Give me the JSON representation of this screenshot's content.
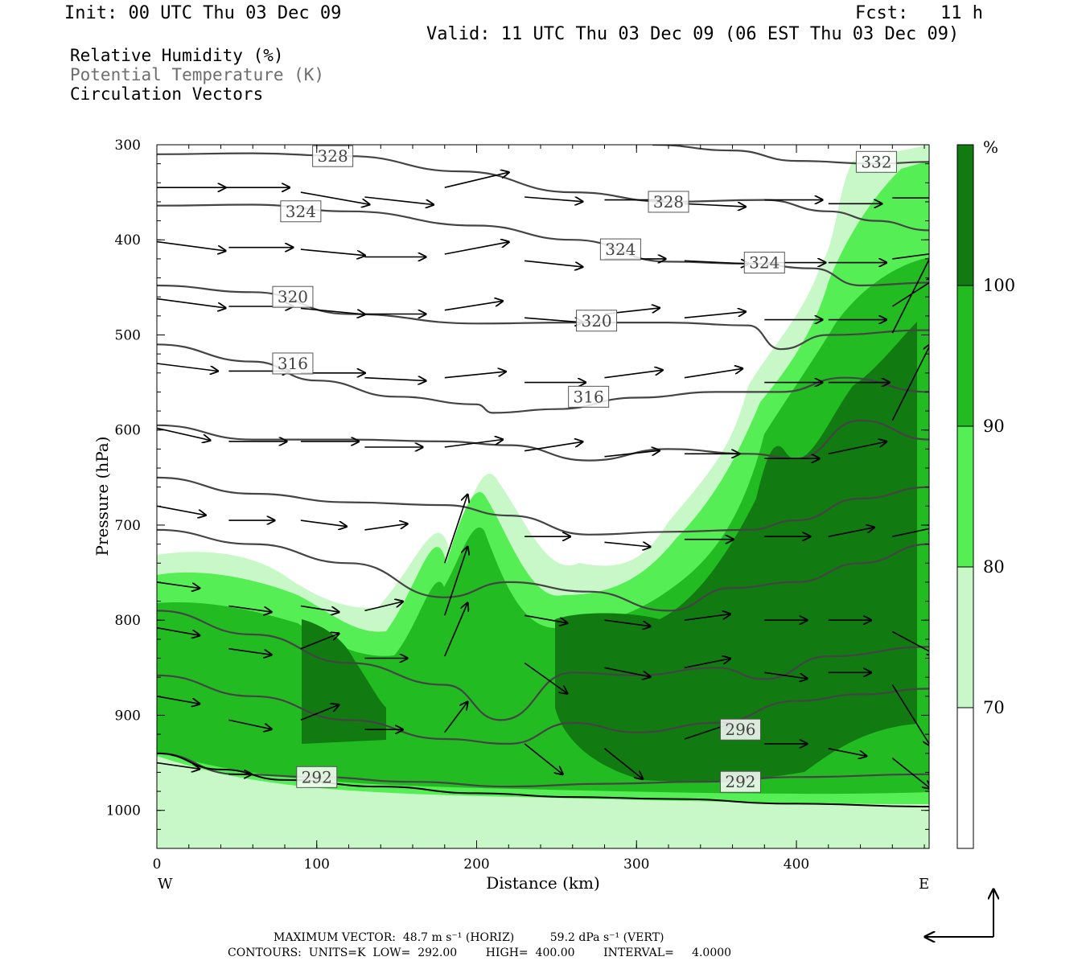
{
  "header": {
    "init": "Init: 00 UTC Thu 03 Dec 09",
    "fcst": "Fcst:   11 h",
    "valid": "Valid: 11 UTC Thu 03 Dec 09 (06 EST Thu 03 Dec 09)"
  },
  "fields": {
    "rh": "Relative Humidity (%)",
    "theta": "Potential Temperature (K)",
    "vectors": "Circulation Vectors"
  },
  "colors": {
    "rh_70_80": "#c8f7c8",
    "rh_80_90": "#55ee55",
    "rh_90_100": "#22bb22",
    "rh_100": "#117a11",
    "theta_line": "#444444",
    "vector": "#000000"
  },
  "chart_data": {
    "type": "cross-section",
    "xlabel": "Distance (km)",
    "ylabel": "Pressure (hPa)",
    "xlim": [
      0,
      483
    ],
    "ylim": [
      1040,
      300
    ],
    "x_ticks": [
      "0",
      "100",
      "200",
      "300",
      "400"
    ],
    "y_ticks": [
      "300",
      "400",
      "500",
      "600",
      "700",
      "800",
      "900",
      "1000"
    ],
    "west_label": "W",
    "east_label": "E",
    "colorbar": {
      "unit": "%",
      "levels": [
        "70",
        "80",
        "90",
        "100"
      ]
    },
    "theta_contours": [
      {
        "level": 332,
        "label": "332",
        "points": [
          [
            310,
            300
          ],
          [
            360,
            306
          ],
          [
            400,
            317
          ],
          [
            450,
            320
          ],
          [
            483,
            318
          ]
        ]
      },
      {
        "level": 328,
        "label": "328",
        "points": [
          [
            0,
            310
          ],
          [
            60,
            309
          ],
          [
            120,
            312
          ],
          [
            190,
            328
          ],
          [
            260,
            350
          ],
          [
            320,
            360
          ],
          [
            380,
            358
          ],
          [
            420,
            370
          ],
          [
            450,
            380
          ],
          [
            483,
            390
          ]
        ]
      },
      {
        "level": 324,
        "label": "324",
        "points": [
          [
            0,
            364
          ],
          [
            60,
            363
          ],
          [
            120,
            370
          ],
          [
            200,
            385
          ],
          [
            260,
            400
          ],
          [
            320,
            423
          ],
          [
            370,
            425
          ],
          [
            410,
            430
          ],
          [
            440,
            448
          ],
          [
            483,
            445
          ]
        ]
      },
      {
        "level": 320,
        "label": "320",
        "points": [
          [
            0,
            448
          ],
          [
            60,
            455
          ],
          [
            120,
            478
          ],
          [
            200,
            488
          ],
          [
            260,
            487
          ],
          [
            320,
            487
          ],
          [
            370,
            490
          ],
          [
            390,
            515
          ],
          [
            420,
            500
          ],
          [
            483,
            495
          ]
        ]
      },
      {
        "level": 316,
        "label": "316",
        "points": [
          [
            0,
            510
          ],
          [
            60,
            528
          ],
          [
            100,
            548
          ],
          [
            150,
            565
          ],
          [
            200,
            573
          ],
          [
            210,
            582
          ],
          [
            250,
            578
          ],
          [
            300,
            566
          ],
          [
            350,
            560
          ],
          [
            390,
            560
          ],
          [
            430,
            545
          ],
          [
            483,
            560
          ]
        ]
      },
      {
        "level": 312,
        "label": "",
        "points": [
          [
            0,
            595
          ],
          [
            60,
            610
          ],
          [
            120,
            610
          ],
          [
            180,
            612
          ],
          [
            220,
            616
          ],
          [
            270,
            632
          ],
          [
            320,
            620
          ],
          [
            370,
            625
          ],
          [
            400,
            630
          ],
          [
            440,
            590
          ],
          [
            483,
            610
          ]
        ]
      },
      {
        "level": 308,
        "label": "",
        "points": [
          [
            0,
            650
          ],
          [
            60,
            667
          ],
          [
            120,
            676
          ],
          [
            180,
            679
          ],
          [
            220,
            690
          ],
          [
            270,
            710
          ],
          [
            320,
            707
          ],
          [
            370,
            705
          ],
          [
            400,
            695
          ],
          [
            440,
            672
          ],
          [
            483,
            660
          ]
        ]
      },
      {
        "level": 304,
        "label": "",
        "points": [
          [
            0,
            705
          ],
          [
            60,
            720
          ],
          [
            120,
            740
          ],
          [
            180,
            776
          ],
          [
            220,
            760
          ],
          [
            270,
            770
          ],
          [
            320,
            790
          ],
          [
            360,
            766
          ],
          [
            400,
            760
          ],
          [
            440,
            740
          ],
          [
            483,
            720
          ]
        ]
      },
      {
        "level": 300,
        "label": "",
        "points": [
          [
            0,
            790
          ],
          [
            60,
            815
          ],
          [
            120,
            845
          ],
          [
            180,
            868
          ],
          [
            215,
            905
          ],
          [
            260,
            855
          ],
          [
            300,
            858
          ],
          [
            350,
            850
          ],
          [
            380,
            862
          ],
          [
            420,
            838
          ],
          [
            483,
            828
          ]
        ]
      },
      {
        "level": 296,
        "label": "296",
        "points": [
          [
            0,
            858
          ],
          [
            60,
            880
          ],
          [
            120,
            905
          ],
          [
            180,
            925
          ],
          [
            220,
            930
          ],
          [
            260,
            908
          ],
          [
            300,
            918
          ],
          [
            350,
            908
          ],
          [
            400,
            885
          ],
          [
            440,
            878
          ],
          [
            483,
            872
          ]
        ]
      },
      {
        "level": 292,
        "label": "292",
        "points": [
          [
            0,
            940
          ],
          [
            50,
            962
          ],
          [
            100,
            965
          ],
          [
            160,
            970
          ],
          [
            220,
            975
          ],
          [
            280,
            972
          ],
          [
            340,
            970
          ],
          [
            400,
            965
          ],
          [
            483,
            962
          ]
        ]
      }
    ],
    "surface_pressure": [
      [
        0,
        940
      ],
      [
        40,
        957
      ],
      [
        80,
        968
      ],
      [
        140,
        975
      ],
      [
        200,
        982
      ],
      [
        260,
        986
      ],
      [
        320,
        988
      ],
      [
        400,
        993
      ],
      [
        483,
        996
      ]
    ],
    "vectors": [
      {
        "x": 0,
        "p": 345,
        "u": 45,
        "w": 0
      },
      {
        "x": 40,
        "p": 345,
        "u": 45,
        "w": 0
      },
      {
        "x": 90,
        "p": 350,
        "u": 45,
        "w": -8
      },
      {
        "x": 130,
        "p": 355,
        "u": 45,
        "w": -5
      },
      {
        "x": 180,
        "p": 345,
        "u": 42,
        "w": 10
      },
      {
        "x": 230,
        "p": 355,
        "u": 38,
        "w": -3
      },
      {
        "x": 280,
        "p": 358,
        "u": 38,
        "w": 0
      },
      {
        "x": 330,
        "p": 362,
        "u": 40,
        "w": -2
      },
      {
        "x": 380,
        "p": 358,
        "u": 38,
        "w": 0
      },
      {
        "x": 420,
        "p": 362,
        "u": 35,
        "w": 0
      },
      {
        "x": 460,
        "p": 356,
        "u": 30,
        "w": 0
      },
      {
        "x": 0,
        "p": 402,
        "u": 45,
        "w": -6
      },
      {
        "x": 45,
        "p": 408,
        "u": 42,
        "w": 0
      },
      {
        "x": 90,
        "p": 410,
        "u": 42,
        "w": -4
      },
      {
        "x": 130,
        "p": 418,
        "u": 40,
        "w": 0
      },
      {
        "x": 180,
        "p": 415,
        "u": 42,
        "w": 8
      },
      {
        "x": 230,
        "p": 422,
        "u": 38,
        "w": -4
      },
      {
        "x": 280,
        "p": 420,
        "u": 40,
        "w": 0
      },
      {
        "x": 330,
        "p": 422,
        "u": 42,
        "w": -2
      },
      {
        "x": 380,
        "p": 424,
        "u": 40,
        "w": 0
      },
      {
        "x": 420,
        "p": 424,
        "u": 38,
        "w": 0
      },
      {
        "x": 460,
        "p": 420,
        "u": 30,
        "w": 4
      },
      {
        "x": 0,
        "p": 462,
        "u": 45,
        "w": -6
      },
      {
        "x": 45,
        "p": 470,
        "u": 42,
        "w": 0
      },
      {
        "x": 90,
        "p": 472,
        "u": 42,
        "w": -4
      },
      {
        "x": 130,
        "p": 478,
        "u": 40,
        "w": 0
      },
      {
        "x": 180,
        "p": 474,
        "u": 38,
        "w": 6
      },
      {
        "x": 230,
        "p": 482,
        "u": 38,
        "w": -3
      },
      {
        "x": 280,
        "p": 478,
        "u": 36,
        "w": 4
      },
      {
        "x": 330,
        "p": 482,
        "u": 40,
        "w": 4
      },
      {
        "x": 380,
        "p": 484,
        "u": 38,
        "w": 0
      },
      {
        "x": 420,
        "p": 484,
        "u": 38,
        "w": 0
      },
      {
        "x": 460,
        "p": 470,
        "u": 28,
        "w": 18
      },
      {
        "x": 0,
        "p": 530,
        "u": 40,
        "w": -5
      },
      {
        "x": 45,
        "p": 538,
        "u": 40,
        "w": 0
      },
      {
        "x": 90,
        "p": 540,
        "u": 42,
        "w": 0
      },
      {
        "x": 130,
        "p": 545,
        "u": 40,
        "w": -2
      },
      {
        "x": 180,
        "p": 545,
        "u": 40,
        "w": 4
      },
      {
        "x": 230,
        "p": 550,
        "u": 40,
        "w": 0
      },
      {
        "x": 280,
        "p": 545,
        "u": 38,
        "w": 5
      },
      {
        "x": 330,
        "p": 545,
        "u": 38,
        "w": 6
      },
      {
        "x": 380,
        "p": 550,
        "u": 38,
        "w": 0
      },
      {
        "x": 420,
        "p": 550,
        "u": 40,
        "w": 0
      },
      {
        "x": 460,
        "p": 498,
        "u": 30,
        "w": 60
      },
      {
        "x": 0,
        "p": 598,
        "u": 35,
        "w": -8
      },
      {
        "x": 45,
        "p": 612,
        "u": 38,
        "w": 0
      },
      {
        "x": 90,
        "p": 612,
        "u": 38,
        "w": 0
      },
      {
        "x": 130,
        "p": 618,
        "u": 38,
        "w": 0
      },
      {
        "x": 180,
        "p": 618,
        "u": 38,
        "w": 5
      },
      {
        "x": 230,
        "p": 622,
        "u": 38,
        "w": 6
      },
      {
        "x": 280,
        "p": 628,
        "u": 36,
        "w": 4
      },
      {
        "x": 330,
        "p": 625,
        "u": 36,
        "w": 0
      },
      {
        "x": 380,
        "p": 630,
        "u": 36,
        "w": 0
      },
      {
        "x": 420,
        "p": 625,
        "u": 38,
        "w": 8
      },
      {
        "x": 460,
        "p": 590,
        "u": 25,
        "w": 50
      },
      {
        "x": 0,
        "p": 680,
        "u": 32,
        "w": -6
      },
      {
        "x": 45,
        "p": 695,
        "u": 30,
        "w": 0
      },
      {
        "x": 90,
        "p": 695,
        "u": 30,
        "w": -4
      },
      {
        "x": 130,
        "p": 705,
        "u": 28,
        "w": 4
      },
      {
        "x": 180,
        "p": 740,
        "u": 15,
        "w": 45
      },
      {
        "x": 230,
        "p": 712,
        "u": 30,
        "w": 0
      },
      {
        "x": 280,
        "p": 718,
        "u": 30,
        "w": -3
      },
      {
        "x": 330,
        "p": 715,
        "u": 32,
        "w": 0
      },
      {
        "x": 380,
        "p": 712,
        "u": 30,
        "w": 0
      },
      {
        "x": 420,
        "p": 712,
        "u": 30,
        "w": 6
      },
      {
        "x": 460,
        "p": 712,
        "u": 28,
        "w": 6
      },
      {
        "x": 0,
        "p": 760,
        "u": 28,
        "w": -4
      },
      {
        "x": 45,
        "p": 785,
        "u": 28,
        "w": -4
      },
      {
        "x": 90,
        "p": 785,
        "u": 25,
        "w": -4
      },
      {
        "x": 130,
        "p": 790,
        "u": 25,
        "w": 6
      },
      {
        "x": 180,
        "p": 795,
        "u": 15,
        "w": 45
      },
      {
        "x": 230,
        "p": 795,
        "u": 28,
        "w": -5
      },
      {
        "x": 280,
        "p": 800,
        "u": 30,
        "w": -4
      },
      {
        "x": 330,
        "p": 800,
        "u": 30,
        "w": 4
      },
      {
        "x": 380,
        "p": 800,
        "u": 28,
        "w": 0
      },
      {
        "x": 420,
        "p": 800,
        "u": 28,
        "w": 0
      },
      {
        "x": 460,
        "p": 812,
        "u": 28,
        "w": -15
      },
      {
        "x": 0,
        "p": 808,
        "u": 28,
        "w": -5
      },
      {
        "x": 45,
        "p": 830,
        "u": 28,
        "w": -4
      },
      {
        "x": 90,
        "p": 830,
        "u": 25,
        "w": 10
      },
      {
        "x": 130,
        "p": 840,
        "u": 28,
        "w": 0
      },
      {
        "x": 180,
        "p": 838,
        "u": 15,
        "w": 35
      },
      {
        "x": 230,
        "p": 845,
        "u": 28,
        "w": -20
      },
      {
        "x": 280,
        "p": 850,
        "u": 30,
        "w": -6
      },
      {
        "x": 330,
        "p": 850,
        "u": 30,
        "w": 6
      },
      {
        "x": 380,
        "p": 855,
        "u": 28,
        "w": -4
      },
      {
        "x": 420,
        "p": 855,
        "u": 28,
        "w": 0
      },
      {
        "x": 460,
        "p": 868,
        "u": 25,
        "w": -40
      },
      {
        "x": 0,
        "p": 880,
        "u": 28,
        "w": -5
      },
      {
        "x": 45,
        "p": 905,
        "u": 28,
        "w": -6
      },
      {
        "x": 90,
        "p": 905,
        "u": 25,
        "w": 10
      },
      {
        "x": 130,
        "p": 915,
        "u": 25,
        "w": 0
      },
      {
        "x": 180,
        "p": 918,
        "u": 15,
        "w": 20
      },
      {
        "x": 230,
        "p": 930,
        "u": 25,
        "w": -20
      },
      {
        "x": 280,
        "p": 935,
        "u": 25,
        "w": -20
      },
      {
        "x": 330,
        "p": 925,
        "u": 30,
        "w": 10
      },
      {
        "x": 380,
        "p": 930,
        "u": 28,
        "w": 0
      },
      {
        "x": 420,
        "p": 935,
        "u": 25,
        "w": -5
      },
      {
        "x": 460,
        "p": 945,
        "u": 25,
        "w": -20
      },
      {
        "x": 0,
        "p": 950,
        "u": 28,
        "w": -4
      },
      {
        "x": 45,
        "p": 962,
        "u": 15,
        "w": 0
      }
    ],
    "footer": {
      "max_vector": "MAXIMUM VECTOR:  48.7 m s⁻¹ (HORIZ)          59.2 dPa s⁻¹ (VERT)",
      "contours": "CONTOURS:  UNITS=K  LOW=  292.00        HIGH=  400.00        INTERVAL=     4.0000"
    }
  }
}
